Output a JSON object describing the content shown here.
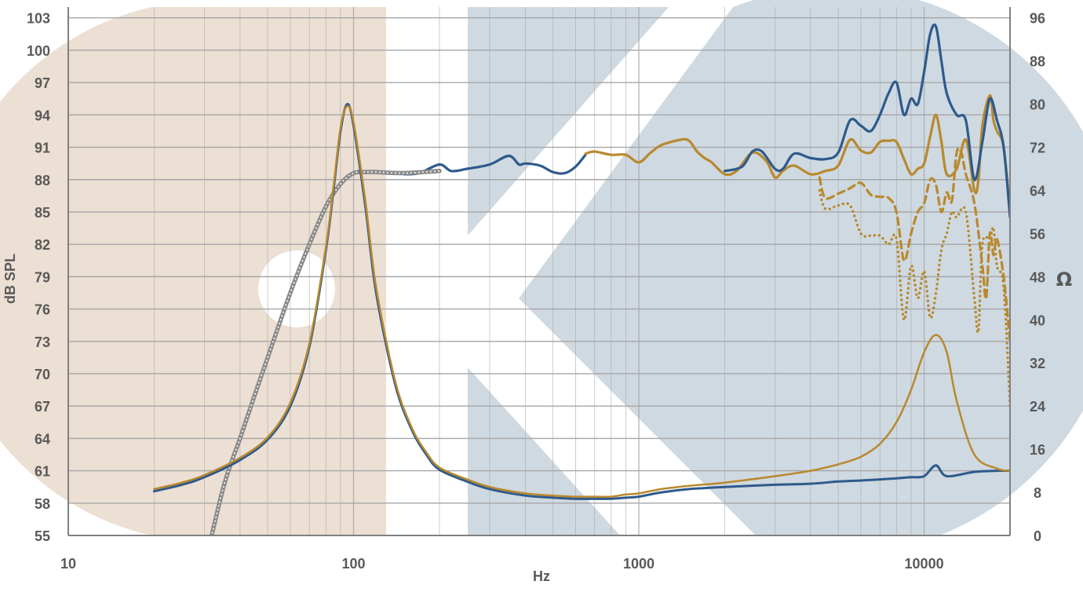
{
  "chart_data": {
    "type": "line",
    "xlabel": "Hz",
    "ylabel": "dB SPL",
    "y2label": "Ω",
    "xscale": "log",
    "xlim": [
      10,
      20000
    ],
    "ylim": [
      55,
      104
    ],
    "y2lim": [
      0,
      98
    ],
    "grid": true,
    "x_ticks": [
      "10",
      "100",
      "1000",
      "10000"
    ],
    "y_ticks": [
      "103",
      "100",
      "97",
      "94",
      "91",
      "88",
      "85",
      "82",
      "79",
      "76",
      "73",
      "70",
      "67",
      "64",
      "61",
      "58",
      "55"
    ],
    "y2_ticks": [
      "96",
      "88",
      "80",
      "72",
      "64",
      "56",
      "48",
      "40",
      "32",
      "24",
      "16",
      "8",
      "0"
    ],
    "colors": {
      "blue": "#2e5a8c",
      "gold": "#b8892e",
      "gray": "#8a8a8a",
      "grid": "#a6a6a6",
      "axis": "#808080",
      "text": "#595959"
    },
    "series": [
      {
        "axis": "left",
        "color": "#2e5a8c",
        "width": 3.2,
        "style": "solid",
        "x": [
          150,
          170,
          200,
          220,
          250,
          300,
          350,
          380,
          400,
          450,
          500,
          550,
          600,
          650
        ],
        "y": [
          88.5,
          88.6,
          89.4,
          88.8,
          89.0,
          89.4,
          90.2,
          89.4,
          89.5,
          89.3,
          88.7,
          88.6,
          89.2,
          90.3
        ]
      },
      {
        "axis": "left",
        "color": "#b8892e",
        "width": 3.2,
        "style": "solid",
        "x": [
          650,
          700,
          800,
          900,
          1000,
          1100,
          1200,
          1400,
          1500,
          1600,
          1700,
          1800,
          2000,
          2200,
          2500,
          2800,
          3000,
          3200,
          3500,
          4000,
          4500,
          5000,
          5500,
          6000,
          6500,
          7000,
          7500,
          8000,
          8500,
          9000,
          9500,
          10000,
          10500,
          11000,
          11500,
          12000,
          13000,
          14000,
          15000,
          15500,
          16000,
          17000,
          17500,
          18000,
          19000,
          20000
        ],
        "y": [
          90.4,
          90.6,
          90.3,
          90.3,
          89.6,
          90.5,
          91.2,
          91.7,
          91.6,
          90.6,
          90.0,
          89.6,
          88.5,
          88.8,
          90.5,
          89.7,
          88.2,
          88.8,
          89.3,
          88.5,
          88.8,
          89.3,
          91.7,
          90.7,
          90.5,
          91.5,
          91.6,
          91.5,
          89.9,
          88.5,
          89.0,
          89.5,
          92.0,
          94.0,
          91.5,
          88.5,
          89.0,
          91.7,
          87.0,
          88.0,
          93.0,
          95.8,
          93.5,
          92.5,
          91.0,
          85.0
        ]
      },
      {
        "axis": "left",
        "color": "#2e5a8c",
        "width": 3.2,
        "style": "solid",
        "x": [
          2000,
          2300,
          2500,
          2700,
          3000,
          3200,
          3500,
          4000,
          4500,
          5000,
          5500,
          6000,
          6500,
          7000,
          7500,
          8000,
          8500,
          9000,
          9500,
          10000,
          10500,
          11000,
          11500,
          12000,
          13000,
          14000,
          15000,
          16000,
          17000,
          18000,
          19000,
          20000
        ],
        "y": [
          88.8,
          89.2,
          90.6,
          90.6,
          89.0,
          89.0,
          90.4,
          90.0,
          89.9,
          90.5,
          93.5,
          93.0,
          92.5,
          94.0,
          96.0,
          97.0,
          94.0,
          95.5,
          95.0,
          98.0,
          101.5,
          102.2,
          99.0,
          96.0,
          94.0,
          93.5,
          88.0,
          91.5,
          95.5,
          93.5,
          91.0,
          84.5
        ]
      },
      {
        "axis": "left",
        "color": "#b8892e",
        "width": 3.2,
        "style": "dashed",
        "x": [
          4300,
          4500,
          5000,
          5500,
          6000,
          6500,
          7000,
          7500,
          8000,
          8500,
          9000,
          9500,
          10000,
          10500,
          11000,
          11500,
          12000,
          12500,
          13000,
          13500,
          14000,
          15000,
          16000,
          16500,
          17000,
          17500,
          18000,
          19000,
          20000
        ],
        "y": [
          88.2,
          86.3,
          86.7,
          87.2,
          87.7,
          86.6,
          86.4,
          86.3,
          85.0,
          80.5,
          83.0,
          85.0,
          85.8,
          88.0,
          87.5,
          85.0,
          86.8,
          86.0,
          90.5,
          90.5,
          88.5,
          85.8,
          80.0,
          77.0,
          83.0,
          81.0,
          82.5,
          79.0,
          73.0
        ]
      },
      {
        "axis": "left",
        "color": "#b8892e",
        "width": 3.2,
        "style": "dotted",
        "x": [
          4300,
          4500,
          5000,
          5500,
          6000,
          6500,
          7000,
          7500,
          8000,
          8500,
          9000,
          9500,
          10000,
          10500,
          11000,
          11500,
          12000,
          12500,
          13000,
          14000,
          15000,
          15500,
          16000,
          17000,
          17500,
          18000,
          19000,
          20000
        ],
        "y": [
          87.0,
          85.3,
          85.6,
          85.6,
          83.0,
          82.8,
          82.8,
          82.0,
          82.5,
          75.0,
          80.0,
          77.0,
          79.5,
          75.2,
          77.5,
          81.5,
          83.0,
          85.0,
          84.5,
          85.0,
          77.0,
          74.0,
          82.0,
          82.5,
          83.5,
          80.0,
          78.0,
          67.0
        ]
      },
      {
        "axis": "left",
        "color": "#8a8a8a",
        "width": 5.5,
        "style": "solid",
        "x": [
          30,
          35,
          40,
          45,
          50,
          60,
          70,
          80,
          90,
          100,
          110,
          120,
          150,
          200
        ],
        "y": [
          52.0,
          59.5,
          64.0,
          68.0,
          71.5,
          77.5,
          82.0,
          85.5,
          87.6,
          88.6,
          88.7,
          88.7,
          88.6,
          88.8
        ]
      },
      {
        "axis": "left",
        "color": "#2e5a8c",
        "width": 3.0,
        "style": "solid",
        "x": [
          20,
          25,
          30,
          40,
          50,
          60,
          70,
          80,
          85,
          90,
          95,
          100,
          110,
          120,
          140,
          160,
          180,
          200,
          250,
          300,
          400,
          500,
          600,
          700,
          800,
          900,
          1000,
          1200,
          1500,
          2000,
          3000,
          4000,
          5000,
          6000,
          7000,
          8000,
          9000,
          10000,
          11000,
          12000,
          15000,
          18000,
          20000
        ],
        "y": [
          59.1,
          59.7,
          60.4,
          62.0,
          63.9,
          67.0,
          72.5,
          81.5,
          87.0,
          92.5,
          95.0,
          93.0,
          85.5,
          77.5,
          69.0,
          64.8,
          62.5,
          61.1,
          60.0,
          59.3,
          58.7,
          58.5,
          58.4,
          58.4,
          58.4,
          58.5,
          58.6,
          59.0,
          59.3,
          59.5,
          59.7,
          59.8,
          60.0,
          60.1,
          60.2,
          60.3,
          60.4,
          60.5,
          61.5,
          60.5,
          60.9,
          61.0,
          61.0
        ]
      },
      {
        "axis": "left",
        "color": "#b8892e",
        "width": 2.5,
        "style": "solid",
        "x": [
          20,
          25,
          30,
          40,
          50,
          60,
          70,
          80,
          85,
          90,
          95,
          100,
          110,
          120,
          140,
          160,
          180,
          200,
          250,
          300,
          400,
          500,
          600,
          700,
          800,
          900,
          1000,
          1200,
          1500,
          2000,
          3000,
          4000,
          5000,
          6000,
          7000,
          8000,
          9000,
          10000,
          11000,
          12000,
          13000,
          15000,
          18000,
          20000
        ],
        "y": [
          59.3,
          59.9,
          60.6,
          62.2,
          64.1,
          67.3,
          72.8,
          81.8,
          87.3,
          92.8,
          94.8,
          93.3,
          86.0,
          78.0,
          69.3,
          65.0,
          62.7,
          61.3,
          60.2,
          59.5,
          58.9,
          58.7,
          58.6,
          58.6,
          58.6,
          58.8,
          58.9,
          59.3,
          59.6,
          59.9,
          60.5,
          61.0,
          61.6,
          62.3,
          63.5,
          65.5,
          68.5,
          72.0,
          73.6,
          72.0,
          67.5,
          62.5,
          61.2,
          61.0
        ]
      }
    ]
  }
}
